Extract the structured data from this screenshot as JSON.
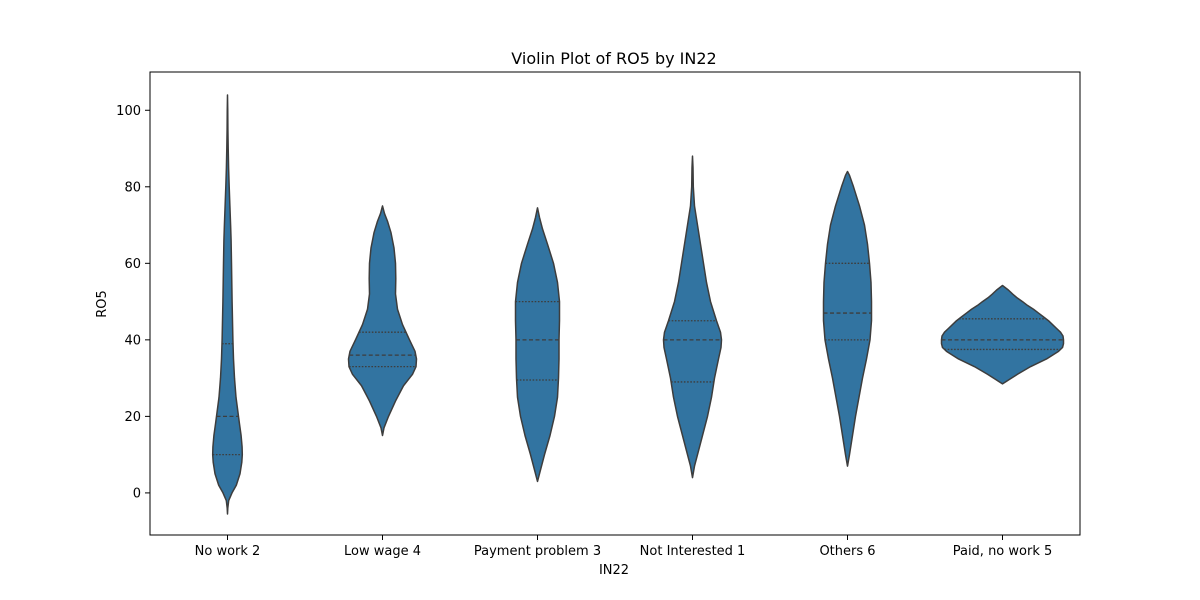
{
  "chart_data": {
    "type": "violin",
    "title": "Violin Plot of RO5 by IN22",
    "xlabel": "IN22",
    "ylabel": "RO5",
    "ylim": [
      -11,
      110
    ],
    "yticks": [
      0,
      20,
      40,
      60,
      80,
      100
    ],
    "grid": false,
    "fill_color": "#3274a1",
    "edge_color": "#3d3d3d",
    "categories": [
      "No work 2",
      "Low wage 4",
      "Payment problem 3",
      "Not Interested 1",
      "Others 6",
      "Paid, no work 5"
    ],
    "violins": [
      {
        "category": "No work 2",
        "quartiles": [
          10,
          20,
          39
        ],
        "profile": [
          [
            -5.5,
            0
          ],
          [
            -4,
            0.3
          ],
          [
            -2,
            1.2
          ],
          [
            0,
            4.5
          ],
          [
            2,
            8.8
          ],
          [
            5,
            12.5
          ],
          [
            8,
            14.3
          ],
          [
            10,
            14.8
          ],
          [
            12,
            14.6
          ],
          [
            15,
            13.6
          ],
          [
            18,
            12
          ],
          [
            20,
            11
          ],
          [
            25,
            8.5
          ],
          [
            30,
            7
          ],
          [
            35,
            6
          ],
          [
            40,
            5.4
          ],
          [
            45,
            5
          ],
          [
            50,
            4.6
          ],
          [
            55,
            4.3
          ],
          [
            60,
            4
          ],
          [
            63,
            3.8
          ],
          [
            66,
            3.6
          ],
          [
            70,
            3.1
          ],
          [
            75,
            2.4
          ],
          [
            80,
            1.7
          ],
          [
            85,
            1.1
          ],
          [
            90,
            0.7
          ],
          [
            95,
            0.4
          ],
          [
            100,
            0.25
          ],
          [
            104,
            0
          ]
        ]
      },
      {
        "category": "Low wage 4",
        "quartiles": [
          33,
          36,
          42
        ],
        "profile": [
          [
            15,
            0
          ],
          [
            17,
            1.5
          ],
          [
            20,
            6
          ],
          [
            24,
            13
          ],
          [
            28,
            21
          ],
          [
            31,
            30
          ],
          [
            33,
            33.5
          ],
          [
            35,
            34
          ],
          [
            37,
            32.5
          ],
          [
            40,
            27
          ],
          [
            44,
            20
          ],
          [
            48,
            15
          ],
          [
            52,
            13
          ],
          [
            56,
            13.3
          ],
          [
            60,
            13
          ],
          [
            64,
            11.5
          ],
          [
            68,
            8.5
          ],
          [
            71,
            5
          ],
          [
            73,
            2
          ],
          [
            75,
            0
          ]
        ]
      },
      {
        "category": "Payment problem 3",
        "quartiles": [
          29.5,
          40,
          50
        ],
        "profile": [
          [
            3,
            0
          ],
          [
            6,
            3
          ],
          [
            10,
            7
          ],
          [
            15,
            12.5
          ],
          [
            20,
            17
          ],
          [
            25,
            20
          ],
          [
            30,
            21
          ],
          [
            35,
            21.5
          ],
          [
            40,
            21.5
          ],
          [
            45,
            22
          ],
          [
            50,
            22
          ],
          [
            55,
            20
          ],
          [
            60,
            16
          ],
          [
            65,
            10
          ],
          [
            69,
            5
          ],
          [
            72,
            2
          ],
          [
            74.5,
            0
          ]
        ]
      },
      {
        "category": "Not Interested 1",
        "quartiles": [
          29,
          40,
          45
        ],
        "profile": [
          [
            4,
            0
          ],
          [
            7,
            2
          ],
          [
            10,
            5
          ],
          [
            15,
            10
          ],
          [
            20,
            15
          ],
          [
            25,
            19
          ],
          [
            30,
            22
          ],
          [
            35,
            26
          ],
          [
            38,
            28.5
          ],
          [
            40,
            29
          ],
          [
            42,
            28
          ],
          [
            45,
            24
          ],
          [
            50,
            18
          ],
          [
            55,
            14
          ],
          [
            60,
            11
          ],
          [
            65,
            8
          ],
          [
            70,
            5
          ],
          [
            75,
            2
          ],
          [
            80,
            0.8
          ],
          [
            85,
            0.5
          ],
          [
            88,
            0
          ]
        ]
      },
      {
        "category": "Others 6",
        "quartiles": [
          40,
          47,
          60
        ],
        "profile": [
          [
            7,
            0
          ],
          [
            10,
            2
          ],
          [
            15,
            5
          ],
          [
            20,
            8
          ],
          [
            25,
            11.5
          ],
          [
            30,
            15
          ],
          [
            35,
            19
          ],
          [
            40,
            22.5
          ],
          [
            45,
            24
          ],
          [
            50,
            24
          ],
          [
            55,
            23.5
          ],
          [
            60,
            22
          ],
          [
            65,
            20
          ],
          [
            70,
            17
          ],
          [
            75,
            12
          ],
          [
            80,
            6
          ],
          [
            83,
            2
          ],
          [
            84,
            0
          ]
        ]
      },
      {
        "category": "Paid, no work 5",
        "quartiles": [
          37.5,
          40,
          45.5
        ],
        "profile": [
          [
            28.5,
            0
          ],
          [
            29.5,
            6
          ],
          [
            31,
            15
          ],
          [
            33,
            28
          ],
          [
            35,
            44
          ],
          [
            37,
            56
          ],
          [
            38,
            60
          ],
          [
            39,
            61
          ],
          [
            40,
            61
          ],
          [
            41,
            60.5
          ],
          [
            42,
            58
          ],
          [
            43,
            54
          ],
          [
            44,
            50
          ],
          [
            45,
            46
          ],
          [
            46,
            41
          ],
          [
            47,
            36
          ],
          [
            48,
            31
          ],
          [
            49,
            25
          ],
          [
            50,
            20
          ],
          [
            51,
            14.5
          ],
          [
            52,
            10
          ],
          [
            53,
            6
          ],
          [
            54.2,
            0
          ]
        ]
      }
    ]
  }
}
